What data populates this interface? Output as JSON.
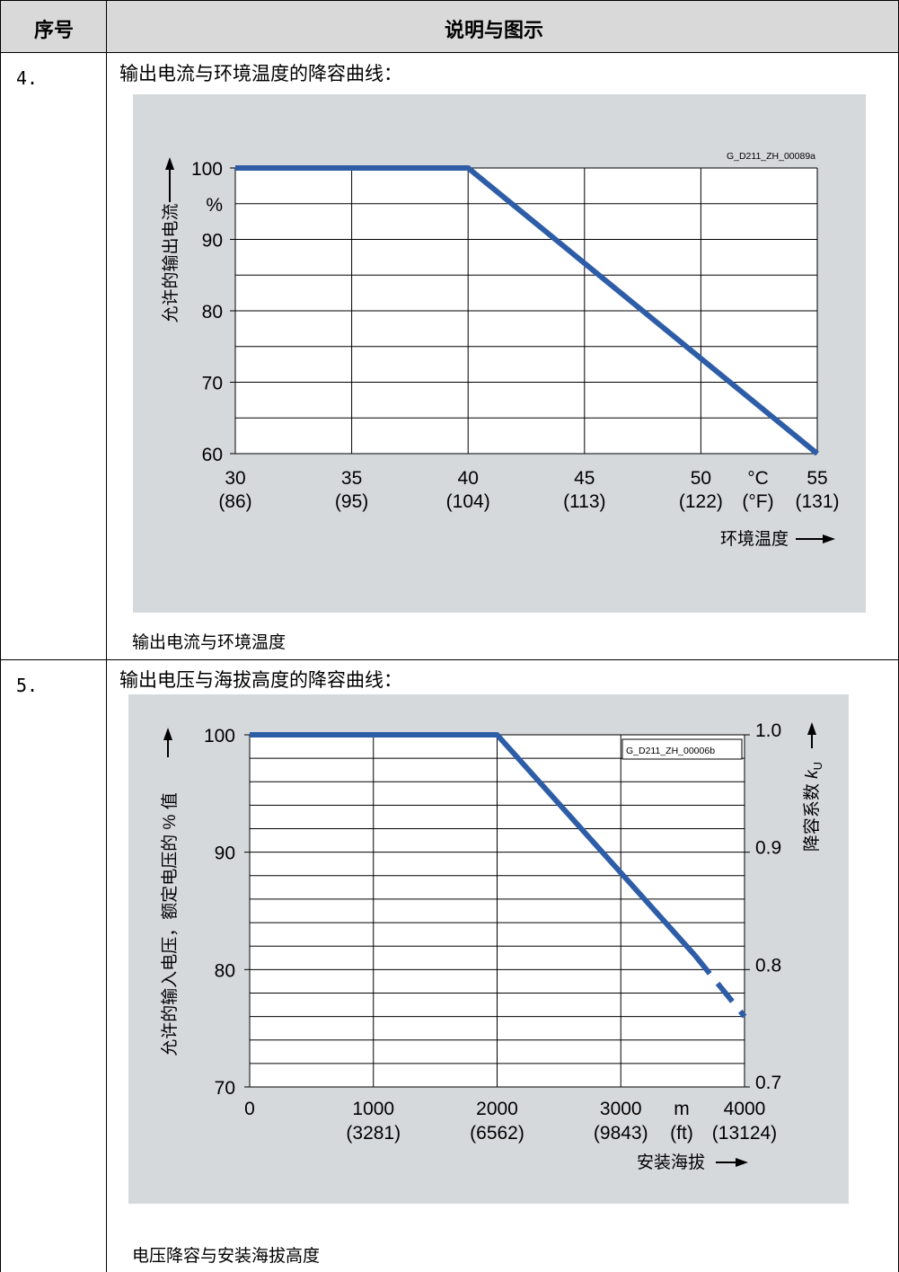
{
  "table": {
    "col_headers": [
      "序号",
      "说明与图示"
    ],
    "rows": [
      {
        "num": "4.",
        "desc": "输出电流与环境温度的降容曲线：",
        "caption": "输出电流与环境温度"
      },
      {
        "num": "5.",
        "desc": "输出电压与海拔高度的降容曲线：",
        "caption": "电压降容与安装海拔高度"
      }
    ]
  },
  "colors": {
    "line": "#2e5da8",
    "chart_bg": "#d6d9dc",
    "header_bg": "#d9d9d9"
  },
  "chart_data": [
    {
      "type": "line",
      "code": "G_D211_ZH_00089a",
      "title": "",
      "xlabel": "环境温度",
      "ylabel": "允许的输出电流",
      "y_unit": "%",
      "x_unit": "°C",
      "x_unit_alt": "(°F)",
      "xlim": [
        30,
        55
      ],
      "ylim": [
        60,
        100
      ],
      "x_ticks": [
        30,
        35,
        40,
        45,
        50,
        55
      ],
      "x_ticks_alt": [
        "(86)",
        "(95)",
        "(104)",
        "(113)",
        "(122)",
        "(131)"
      ],
      "y_ticks": [
        60,
        70,
        80,
        90,
        100
      ],
      "grid": true,
      "series": [
        {
          "x": [
            30,
            40,
            55
          ],
          "y": [
            100,
            100,
            60
          ]
        }
      ]
    },
    {
      "type": "line",
      "code": "G_D211_ZH_00006b",
      "title": "",
      "xlabel": "安装海拔",
      "ylabel": "允许的输入电压，额定电压的 % 值",
      "y2label": "降容系数",
      "y2label_sym": "k",
      "y2label_sub": "U",
      "x_unit": "m",
      "x_unit_alt": "(ft)",
      "xlim": [
        0,
        4000
      ],
      "ylim": [
        70,
        100
      ],
      "y2lim": [
        0.7,
        1.0
      ],
      "x_ticks": [
        0,
        1000,
        2000,
        3000,
        4000
      ],
      "x_ticks_alt": [
        "",
        "(3281)",
        "(6562)",
        "(9843)",
        "(13124)"
      ],
      "y_ticks": [
        70,
        80,
        90,
        100
      ],
      "y2_ticks": [
        "0.7",
        "0.8",
        "0.9",
        "1.0"
      ],
      "grid": true,
      "series": [
        {
          "x": [
            0,
            2000,
            3600
          ],
          "y": [
            100,
            100,
            81.2
          ]
        },
        {
          "x": [
            3600,
            4000
          ],
          "y": [
            81.2,
            76
          ],
          "dashed": true
        }
      ]
    }
  ]
}
